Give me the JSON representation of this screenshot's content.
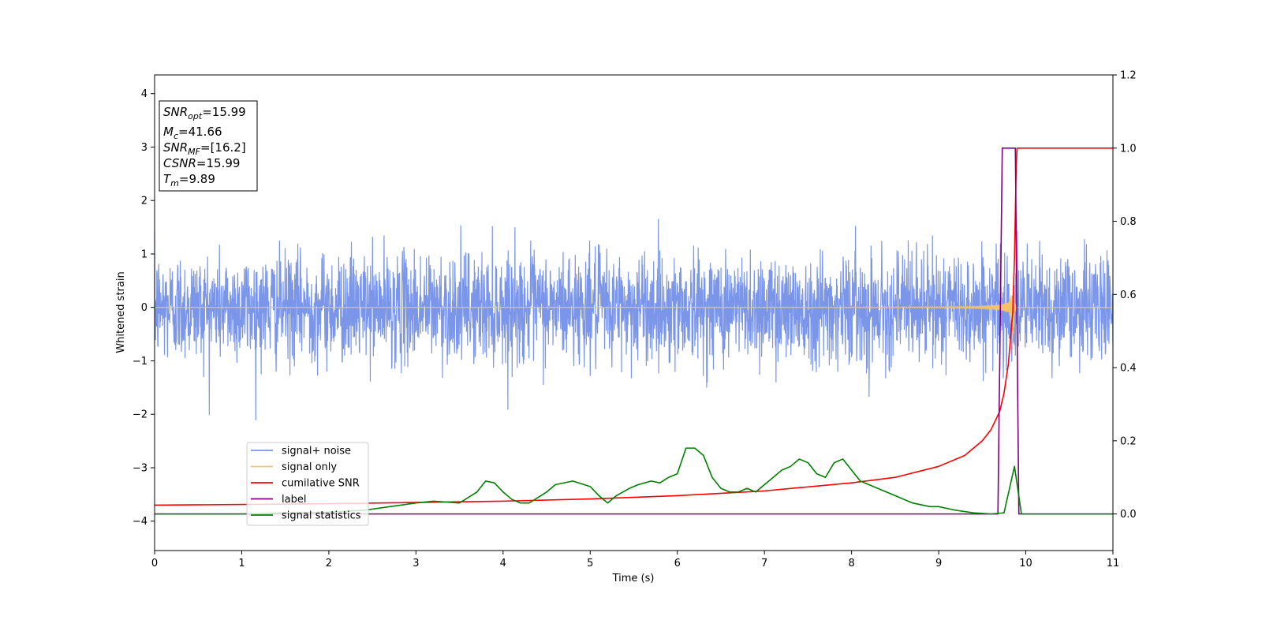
{
  "chart_data": {
    "type": "line",
    "xlabel": "Time (s)",
    "ylabel_left": "Whitened strain",
    "ylabel_right": "",
    "xlim": [
      0,
      11
    ],
    "ylim_left": [
      -4.55,
      4.35
    ],
    "ylim_right": [
      -0.1,
      1.2
    ],
    "x_ticks": [
      0,
      1,
      2,
      3,
      4,
      5,
      6,
      7,
      8,
      9,
      10,
      11
    ],
    "x_tick_labels": [
      "0",
      "1",
      "2",
      "3",
      "4",
      "5",
      "6",
      "7",
      "8",
      "9",
      "10",
      "11"
    ],
    "y_left_ticks": [
      -4,
      -3,
      -2,
      -1,
      0,
      1,
      2,
      3,
      4
    ],
    "y_left_tick_labels": [
      "−4",
      "−3",
      "−2",
      "−1",
      "0",
      "1",
      "2",
      "3",
      "4"
    ],
    "y_right_ticks": [
      0.0,
      0.2,
      0.4,
      0.6,
      0.8,
      1.0,
      1.2
    ],
    "y_right_tick_labels": [
      "0.0",
      "0.2",
      "0.4",
      "0.6",
      "0.8",
      "1.0",
      "1.2"
    ],
    "grid": false,
    "legend_position": "lower-left",
    "annotation": {
      "lines": [
        {
          "base": "SNR",
          "sub": "opt",
          "value": "=15.99"
        },
        {
          "base": "M",
          "sub": "c",
          "value": "=41.66"
        },
        {
          "base": "SNR",
          "sub": "MF",
          "value": "=[16.2]"
        },
        {
          "base": "CSNR",
          "sub": "",
          "value": "=15.99"
        },
        {
          "base": "T",
          "sub": "m",
          "value": "=9.89"
        }
      ]
    },
    "series": [
      {
        "name": "signal+ noise",
        "axis": "left",
        "color": "#7b96e8",
        "noise_std": 0.5,
        "noise_range": [
          -2.5,
          2.1
        ],
        "x_range": [
          0,
          11
        ]
      },
      {
        "name": "signal only",
        "axis": "left",
        "color": "#f5c26b",
        "chirp_peak_time": 9.85,
        "chirp_peak_amplitude": 1.3,
        "x_range": [
          0,
          11
        ]
      },
      {
        "name": "cumilative SNR",
        "axis": "right",
        "color": "#ff0000",
        "x": [
          0,
          2,
          4,
          5,
          6,
          7,
          8,
          8.5,
          9,
          9.3,
          9.5,
          9.6,
          9.7,
          9.75,
          9.8,
          9.85,
          9.87,
          9.89,
          9.9,
          11
        ],
        "values": [
          0.024,
          0.028,
          0.035,
          0.041,
          0.05,
          0.063,
          0.085,
          0.1,
          0.13,
          0.16,
          0.2,
          0.23,
          0.28,
          0.33,
          0.41,
          0.55,
          0.7,
          0.95,
          1.0,
          1.0
        ]
      },
      {
        "name": "label",
        "axis": "right",
        "color": "#800080",
        "x": [
          0,
          9.68,
          9.73,
          9.88,
          9.92,
          11
        ],
        "values": [
          0,
          0,
          1,
          1,
          0,
          0
        ]
      },
      {
        "name": "signal statistics",
        "axis": "right",
        "color": "#008000",
        "x": [
          0,
          0.5,
          1.0,
          1.5,
          2.0,
          2.4,
          2.7,
          3.0,
          3.2,
          3.5,
          3.7,
          3.8,
          3.9,
          4.0,
          4.1,
          4.2,
          4.3,
          4.5,
          4.6,
          4.8,
          5.0,
          5.1,
          5.2,
          5.3,
          5.45,
          5.55,
          5.7,
          5.8,
          5.9,
          6.0,
          6.1,
          6.2,
          6.3,
          6.4,
          6.5,
          6.6,
          6.7,
          6.8,
          6.9,
          7.0,
          7.1,
          7.2,
          7.3,
          7.4,
          7.5,
          7.6,
          7.7,
          7.8,
          7.9,
          8.0,
          8.1,
          8.2,
          8.3,
          8.5,
          8.7,
          8.9,
          9.0,
          9.2,
          9.4,
          9.6,
          9.75,
          9.87,
          9.95,
          10.2,
          11
        ],
        "values": [
          0.0,
          0.0,
          0.0,
          0.003,
          0.005,
          0.01,
          0.02,
          0.03,
          0.035,
          0.03,
          0.06,
          0.09,
          0.085,
          0.06,
          0.04,
          0.03,
          0.03,
          0.06,
          0.08,
          0.09,
          0.075,
          0.05,
          0.03,
          0.05,
          0.07,
          0.08,
          0.09,
          0.085,
          0.1,
          0.11,
          0.18,
          0.18,
          0.16,
          0.1,
          0.07,
          0.06,
          0.06,
          0.07,
          0.06,
          0.08,
          0.1,
          0.12,
          0.13,
          0.15,
          0.14,
          0.11,
          0.1,
          0.14,
          0.15,
          0.12,
          0.09,
          0.08,
          0.07,
          0.05,
          0.03,
          0.02,
          0.02,
          0.01,
          0.003,
          0.0,
          0.003,
          0.13,
          0.0,
          0.0,
          0.0
        ]
      }
    ]
  }
}
